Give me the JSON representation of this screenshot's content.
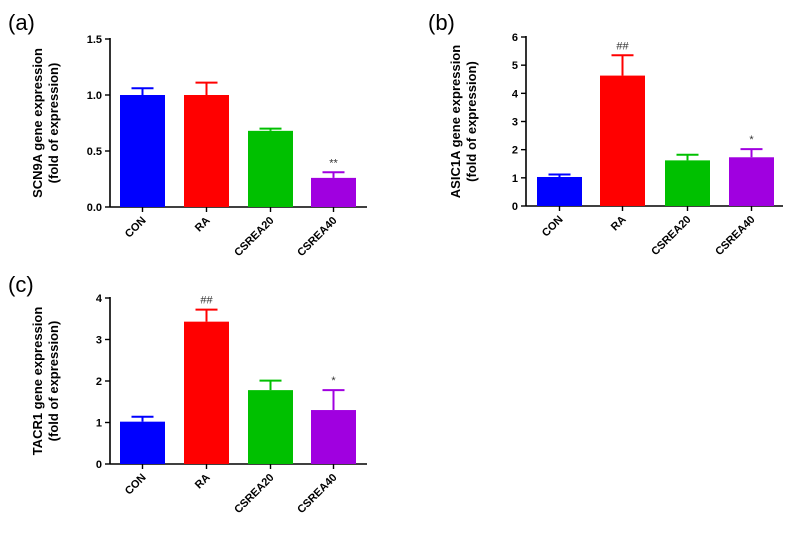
{
  "chart_data": [
    {
      "type": "bar",
      "panel_label": "(a)",
      "ylabel": "SCN9A gene expression",
      "ylabel2": "(fold of expression)",
      "categories": [
        "CON",
        "RA",
        "CSREA20",
        "CSREA40"
      ],
      "values": [
        1.0,
        1.0,
        0.68,
        0.26
      ],
      "error_upper": [
        1.06,
        1.11,
        0.7,
        0.31
      ],
      "annotations": [
        "",
        "",
        "",
        "**"
      ],
      "ylim": [
        0,
        1.5
      ],
      "yticks": [
        0.0,
        0.5,
        1.0,
        1.5
      ],
      "ytick_labels": [
        "0.0",
        "0.5",
        "1.0",
        "1.5"
      ],
      "grid": false
    },
    {
      "type": "bar",
      "panel_label": "(b)",
      "ylabel": "ASIC1A gene expression",
      "ylabel2": "(fold of expression)",
      "categories": [
        "CON",
        "RA",
        "CSREA20",
        "CSREA40"
      ],
      "values": [
        1.03,
        4.63,
        1.62,
        1.73
      ],
      "error_upper": [
        1.12,
        5.35,
        1.82,
        2.02
      ],
      "annotations": [
        "",
        "##",
        "",
        "*"
      ],
      "ylim": [
        0,
        6
      ],
      "yticks": [
        0,
        1,
        2,
        3,
        4,
        5,
        6
      ],
      "ytick_labels": [
        "0",
        "1",
        "2",
        "3",
        "4",
        "5",
        "6"
      ],
      "grid": false
    },
    {
      "type": "bar",
      "panel_label": "(c)",
      "ylabel": "TACR1 gene expression",
      "ylabel2": "(fold of expression)",
      "categories": [
        "CON",
        "RA",
        "CSREA20",
        "CSREA40"
      ],
      "values": [
        1.02,
        3.43,
        1.78,
        1.3
      ],
      "error_upper": [
        1.14,
        3.72,
        2.01,
        1.78
      ],
      "annotations": [
        "",
        "##",
        "",
        "*"
      ],
      "ylim": [
        0,
        4
      ],
      "yticks": [
        0,
        1,
        2,
        3,
        4
      ],
      "ytick_labels": [
        "0",
        "1",
        "2",
        "3",
        "4"
      ],
      "grid": false
    }
  ],
  "colors": [
    "#0000ff",
    "#ff0000",
    "#00c000",
    "#a000e0"
  ]
}
